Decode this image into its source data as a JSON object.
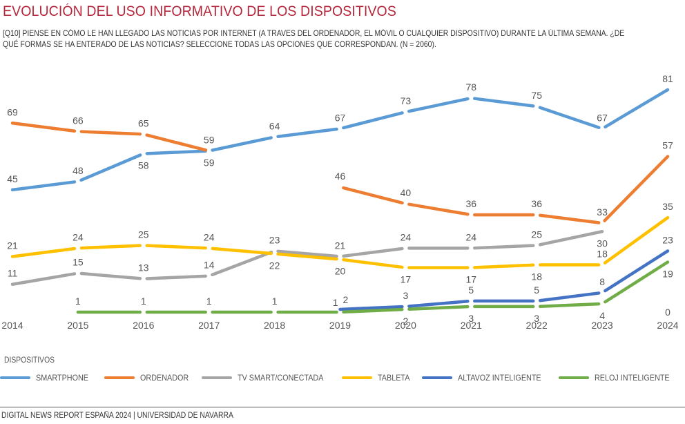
{
  "header": {
    "title": "EVOLUCIÓN DEL USO INFORMATIVO DE LOS DISPOSITIVOS",
    "subtitle_line1": "[Q10] PIENSE EN CÓMO LE HAN LLEGADO LAS NOTICIAS POR INTERNET (A TRAVES DEL ORDENADOR, EL MÓVIL O CUALQUIER DISPOSITIVO) DURANTE LA ÚLTIMA SEMANA.  ¿DE",
    "subtitle_line2": "QUÉ FORMAS SE HA ENTERADO DE LAS NOTICIAS? SELECCIONE TODAS LAS OPCIONES QUE CORRESPONDAN.  (N = 2060)."
  },
  "legend": {
    "title": "DISPOSITIVOS",
    "items": [
      {
        "label": "SMARTPHONE",
        "color": "#5b9bd5"
      },
      {
        "label": "ORDENADOR",
        "color": "#ed7d31"
      },
      {
        "label": "TV SMART/CONECTADA",
        "color": "#a5a5a5"
      },
      {
        "label": "TABLETA",
        "color": "#ffc000"
      },
      {
        "label": "ALTAVOZ INTELIGENTE",
        "color": "#4472c4"
      },
      {
        "label": "RELOJ INTELIGENTE",
        "color": "#70ad47"
      }
    ]
  },
  "footer": {
    "source": "DIGITAL NEWS REPORT ESPAÑA 2024 | UNIVERSIDAD DE NAVARRA"
  },
  "chart_data": {
    "type": "line",
    "title": "EVOLUCIÓN DEL USO INFORMATIVO DE LOS DISPOSITIVOS",
    "xlabel": "",
    "ylabel": "",
    "x": [
      "2014",
      "2015",
      "2016",
      "2017",
      "2018",
      "2019",
      "2020",
      "2021",
      "2022",
      "2023",
      "2024"
    ],
    "ylim": [
      0,
      85
    ],
    "grid": false,
    "legend_position": "bottom",
    "series": [
      {
        "name": "SMARTPHONE",
        "color": "#5b9bd5",
        "values": [
          45,
          48,
          58,
          59,
          64,
          67,
          73,
          78,
          75,
          67,
          81
        ],
        "label_pos": [
          "a",
          "a",
          "b",
          "b",
          "a",
          "a",
          "a",
          "a",
          "a",
          "a",
          "a"
        ]
      },
      {
        "name": "ORDENADOR",
        "color": "#ed7d31",
        "values": [
          69,
          66,
          65,
          59,
          null,
          46,
          40,
          36,
          36,
          33,
          57
        ],
        "label_pos": [
          "a",
          "a",
          "a",
          "a",
          "a",
          "a",
          "a",
          "a",
          "a",
          "a",
          "a"
        ]
      },
      {
        "name": "TV SMART/CONECTADA",
        "color": "#a5a5a5",
        "values": [
          11,
          15,
          13,
          14,
          23,
          21,
          24,
          24,
          25,
          30,
          null
        ],
        "label_pos": [
          "a",
          "a",
          "a",
          "a",
          "a",
          "a",
          "a",
          "a",
          "a",
          "b",
          "a"
        ],
        "extra_labels": [
          {
            "x": "2024",
            "text": "0"
          }
        ]
      },
      {
        "name": "TABLETA",
        "color": "#ffc000",
        "values": [
          21,
          24,
          25,
          24,
          22,
          20,
          17,
          17,
          18,
          18,
          35
        ],
        "label_pos": [
          "a",
          "a",
          "a",
          "a",
          "b",
          "b",
          "b",
          "b",
          "b",
          "a",
          "a"
        ]
      },
      {
        "name": "ALTAVOZ INTELIGENTE",
        "color": "#4472c4",
        "values": [
          null,
          null,
          null,
          null,
          null,
          2,
          3,
          5,
          5,
          8,
          23
        ],
        "label_pos": [
          "a",
          "a",
          "a",
          "a",
          "a",
          "ar",
          "a",
          "a",
          "a",
          "a",
          "a"
        ]
      },
      {
        "name": "RELOJ INTELIGENTE",
        "color": "#70ad47",
        "values": [
          null,
          1,
          1,
          1,
          1,
          1,
          2,
          3,
          3,
          4,
          19
        ],
        "label_pos": [
          "a",
          "a",
          "a",
          "a",
          "a",
          "al",
          "b",
          "b",
          "b",
          "b",
          "b"
        ]
      }
    ]
  }
}
